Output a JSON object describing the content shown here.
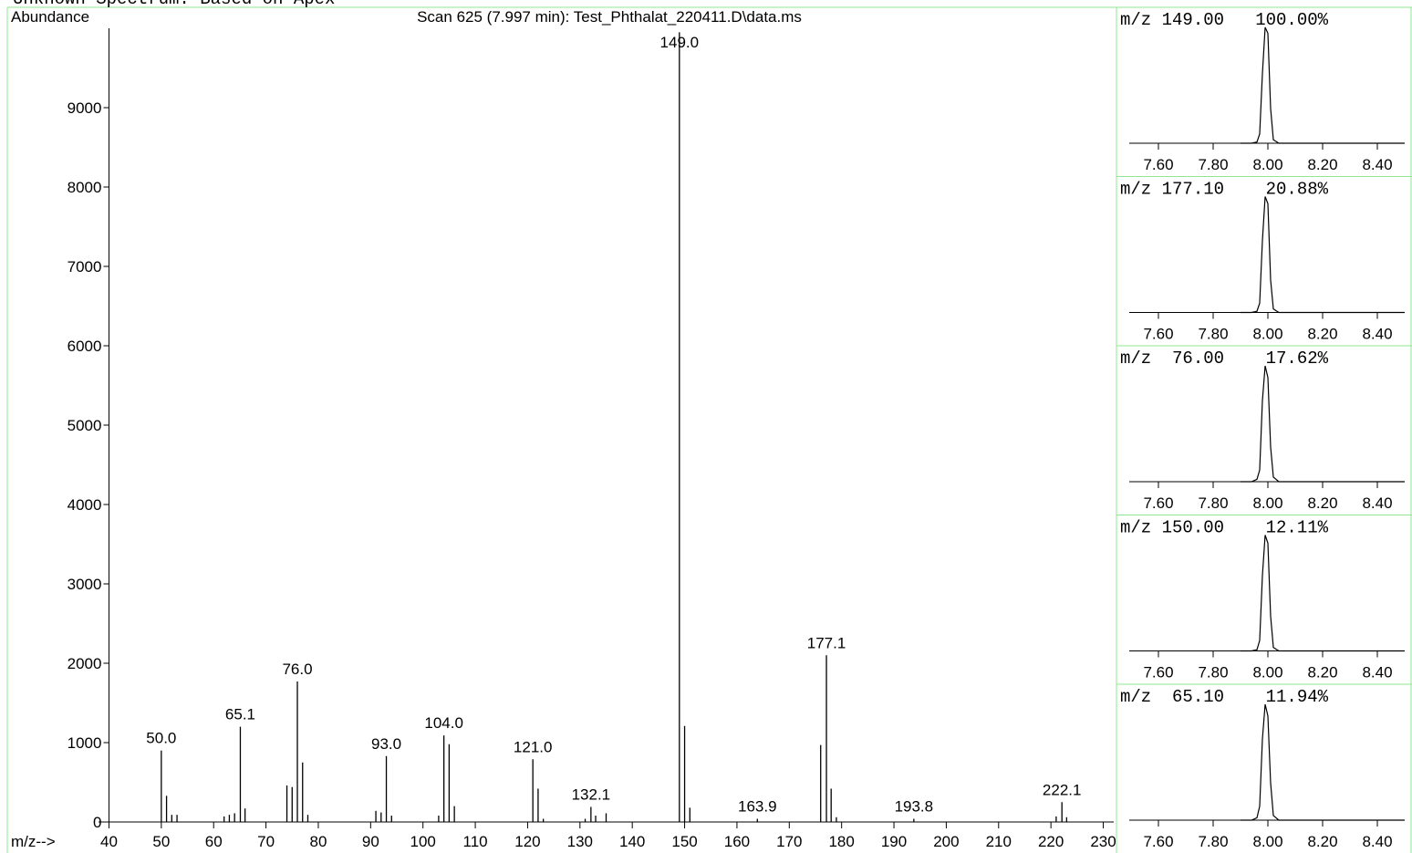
{
  "chart_data": [
    {
      "type": "bar",
      "suptitle": "Unknown Spectrum: Based on Apex",
      "title": "Scan 625 (7.997 min): Test_Phthalat_220411.D\\data.ms",
      "ylabel": "Abundance",
      "xlabel": "m/z-->",
      "color": "#000000",
      "label_color": "#1a1ae6",
      "x": [
        50.0,
        51,
        52,
        53,
        62,
        63,
        64,
        65.1,
        66,
        74,
        75,
        76.0,
        77,
        78,
        91,
        92,
        93.0,
        94,
        103,
        104.0,
        105,
        106,
        121.0,
        122,
        123,
        131,
        132.1,
        133,
        135,
        149.0,
        150,
        151,
        163.9,
        176,
        177.1,
        178,
        179,
        193.8,
        221,
        222.1,
        223
      ],
      "values": [
        900,
        330,
        90,
        90,
        70,
        90,
        110,
        1200,
        170,
        460,
        440,
        1770,
        750,
        90,
        140,
        120,
        830,
        80,
        80,
        1090,
        980,
        200,
        790,
        420,
        40,
        40,
        190,
        80,
        110,
        9950,
        1210,
        180,
        40,
        970,
        2100,
        420,
        60,
        40,
        70,
        250,
        60
      ],
      "peak_labels": [
        "50.0",
        null,
        null,
        null,
        null,
        null,
        null,
        "65.1",
        null,
        null,
        null,
        "76.0",
        null,
        null,
        null,
        null,
        "93.0",
        null,
        null,
        "104.0",
        null,
        null,
        "121.0",
        null,
        null,
        null,
        "132.1",
        null,
        null,
        "149.0",
        null,
        null,
        "163.9",
        null,
        "177.1",
        null,
        null,
        "193.8",
        null,
        "222.1",
        null
      ],
      "xlim": [
        38,
        232
      ],
      "ylim": [
        0,
        10000
      ],
      "xticks": [
        40,
        50,
        60,
        70,
        80,
        90,
        100,
        110,
        120,
        130,
        140,
        150,
        160,
        170,
        180,
        190,
        200,
        210,
        220,
        230
      ],
      "yticks": [
        0,
        1000,
        2000,
        3000,
        4000,
        5000,
        6000,
        7000,
        8000,
        9000
      ]
    },
    {
      "type": "line",
      "title": "m/z 149.00   100.00%",
      "color": "#000000",
      "x": [
        7.9,
        7.94,
        7.96,
        7.97,
        7.98,
        7.99,
        8.0,
        8.01,
        8.02,
        8.04,
        8.5
      ],
      "values": [
        0,
        0,
        1,
        8,
        60,
        100,
        95,
        30,
        3,
        0,
        0
      ],
      "xlim": [
        7.5,
        8.5
      ],
      "ylim": [
        0,
        100
      ],
      "xticks": [
        {
          "value": 7.6,
          "label": "7.60"
        },
        {
          "value": 7.8,
          "label": "7.80"
        },
        {
          "value": 8.0,
          "label": "8.00"
        },
        {
          "value": 8.2,
          "label": "8.20"
        },
        {
          "value": 8.4,
          "label": "8.40"
        }
      ]
    },
    {
      "type": "line",
      "title": "m/z 177.10    20.88%",
      "color": "#000000",
      "x": [
        7.9,
        7.94,
        7.96,
        7.97,
        7.98,
        7.99,
        8.0,
        8.01,
        8.02,
        8.04,
        8.5
      ],
      "values": [
        0,
        0,
        1,
        8,
        62,
        100,
        94,
        28,
        3,
        0,
        0
      ],
      "xlim": [
        7.5,
        8.5
      ],
      "ylim": [
        0,
        100
      ],
      "xticks": [
        {
          "value": 7.6,
          "label": "7.60"
        },
        {
          "value": 7.8,
          "label": "7.80"
        },
        {
          "value": 8.0,
          "label": "8.00"
        },
        {
          "value": 8.2,
          "label": "8.20"
        },
        {
          "value": 8.4,
          "label": "8.40"
        }
      ]
    },
    {
      "type": "line",
      "title": "m/z  76.00    17.62%",
      "color": "#000000",
      "x": [
        7.9,
        7.94,
        7.96,
        7.97,
        7.98,
        7.99,
        8.0,
        8.01,
        8.02,
        8.04,
        8.5
      ],
      "values": [
        0,
        0,
        2,
        10,
        70,
        100,
        90,
        30,
        4,
        0,
        0
      ],
      "xlim": [
        7.5,
        8.5
      ],
      "ylim": [
        0,
        100
      ],
      "xticks": [
        {
          "value": 7.6,
          "label": "7.60"
        },
        {
          "value": 7.8,
          "label": "7.80"
        },
        {
          "value": 8.0,
          "label": "8.00"
        },
        {
          "value": 8.2,
          "label": "8.20"
        },
        {
          "value": 8.4,
          "label": "8.40"
        }
      ]
    },
    {
      "type": "line",
      "title": "m/z 150.00    12.11%",
      "color": "#000000",
      "x": [
        7.9,
        7.94,
        7.96,
        7.97,
        7.98,
        7.99,
        8.0,
        8.01,
        8.02,
        8.04,
        8.5
      ],
      "values": [
        0,
        0,
        1,
        9,
        65,
        100,
        93,
        30,
        3,
        0,
        0
      ],
      "xlim": [
        7.5,
        8.5
      ],
      "ylim": [
        0,
        100
      ],
      "xticks": [
        {
          "value": 7.6,
          "label": "7.60"
        },
        {
          "value": 7.8,
          "label": "7.80"
        },
        {
          "value": 8.0,
          "label": "8.00"
        },
        {
          "value": 8.2,
          "label": "8.20"
        },
        {
          "value": 8.4,
          "label": "8.40"
        }
      ]
    },
    {
      "type": "line",
      "title": "m/z  65.10    11.94%",
      "color": "#000000",
      "x": [
        7.9,
        7.94,
        7.96,
        7.97,
        7.98,
        7.99,
        8.0,
        8.01,
        8.02,
        8.04,
        8.5
      ],
      "values": [
        0,
        0,
        2,
        12,
        70,
        100,
        90,
        32,
        4,
        0,
        0
      ],
      "xlim": [
        7.5,
        8.5
      ],
      "ylim": [
        0,
        100
      ],
      "xticks": [
        {
          "value": 7.6,
          "label": "7.60"
        },
        {
          "value": 7.8,
          "label": "7.80"
        },
        {
          "value": 8.0,
          "label": "8.00"
        },
        {
          "value": 8.2,
          "label": "8.20"
        },
        {
          "value": 8.4,
          "label": "8.40"
        }
      ]
    }
  ]
}
